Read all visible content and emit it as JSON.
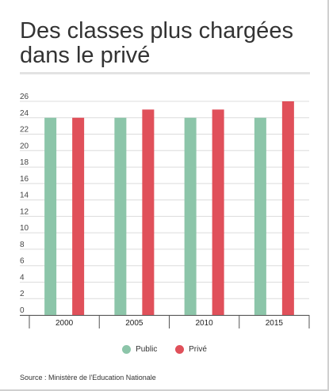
{
  "chart_data": {
    "type": "bar",
    "title": "Des classes plus chargées dans le privé",
    "categories": [
      "2000",
      "2005",
      "2010",
      "2015"
    ],
    "series": [
      {
        "name": "Public",
        "color": "#8cc5a9",
        "values": [
          24,
          24,
          24,
          24
        ]
      },
      {
        "name": "Privé",
        "color": "#e0505a",
        "values": [
          24,
          25,
          25,
          26
        ]
      }
    ],
    "ylim": [
      0,
      26
    ],
    "yticks": [
      0,
      2,
      4,
      6,
      8,
      10,
      12,
      14,
      16,
      18,
      20,
      22,
      24,
      26
    ],
    "grid": true,
    "legend": "bottom",
    "source": "Source : Ministère de l'Education Nationale"
  }
}
